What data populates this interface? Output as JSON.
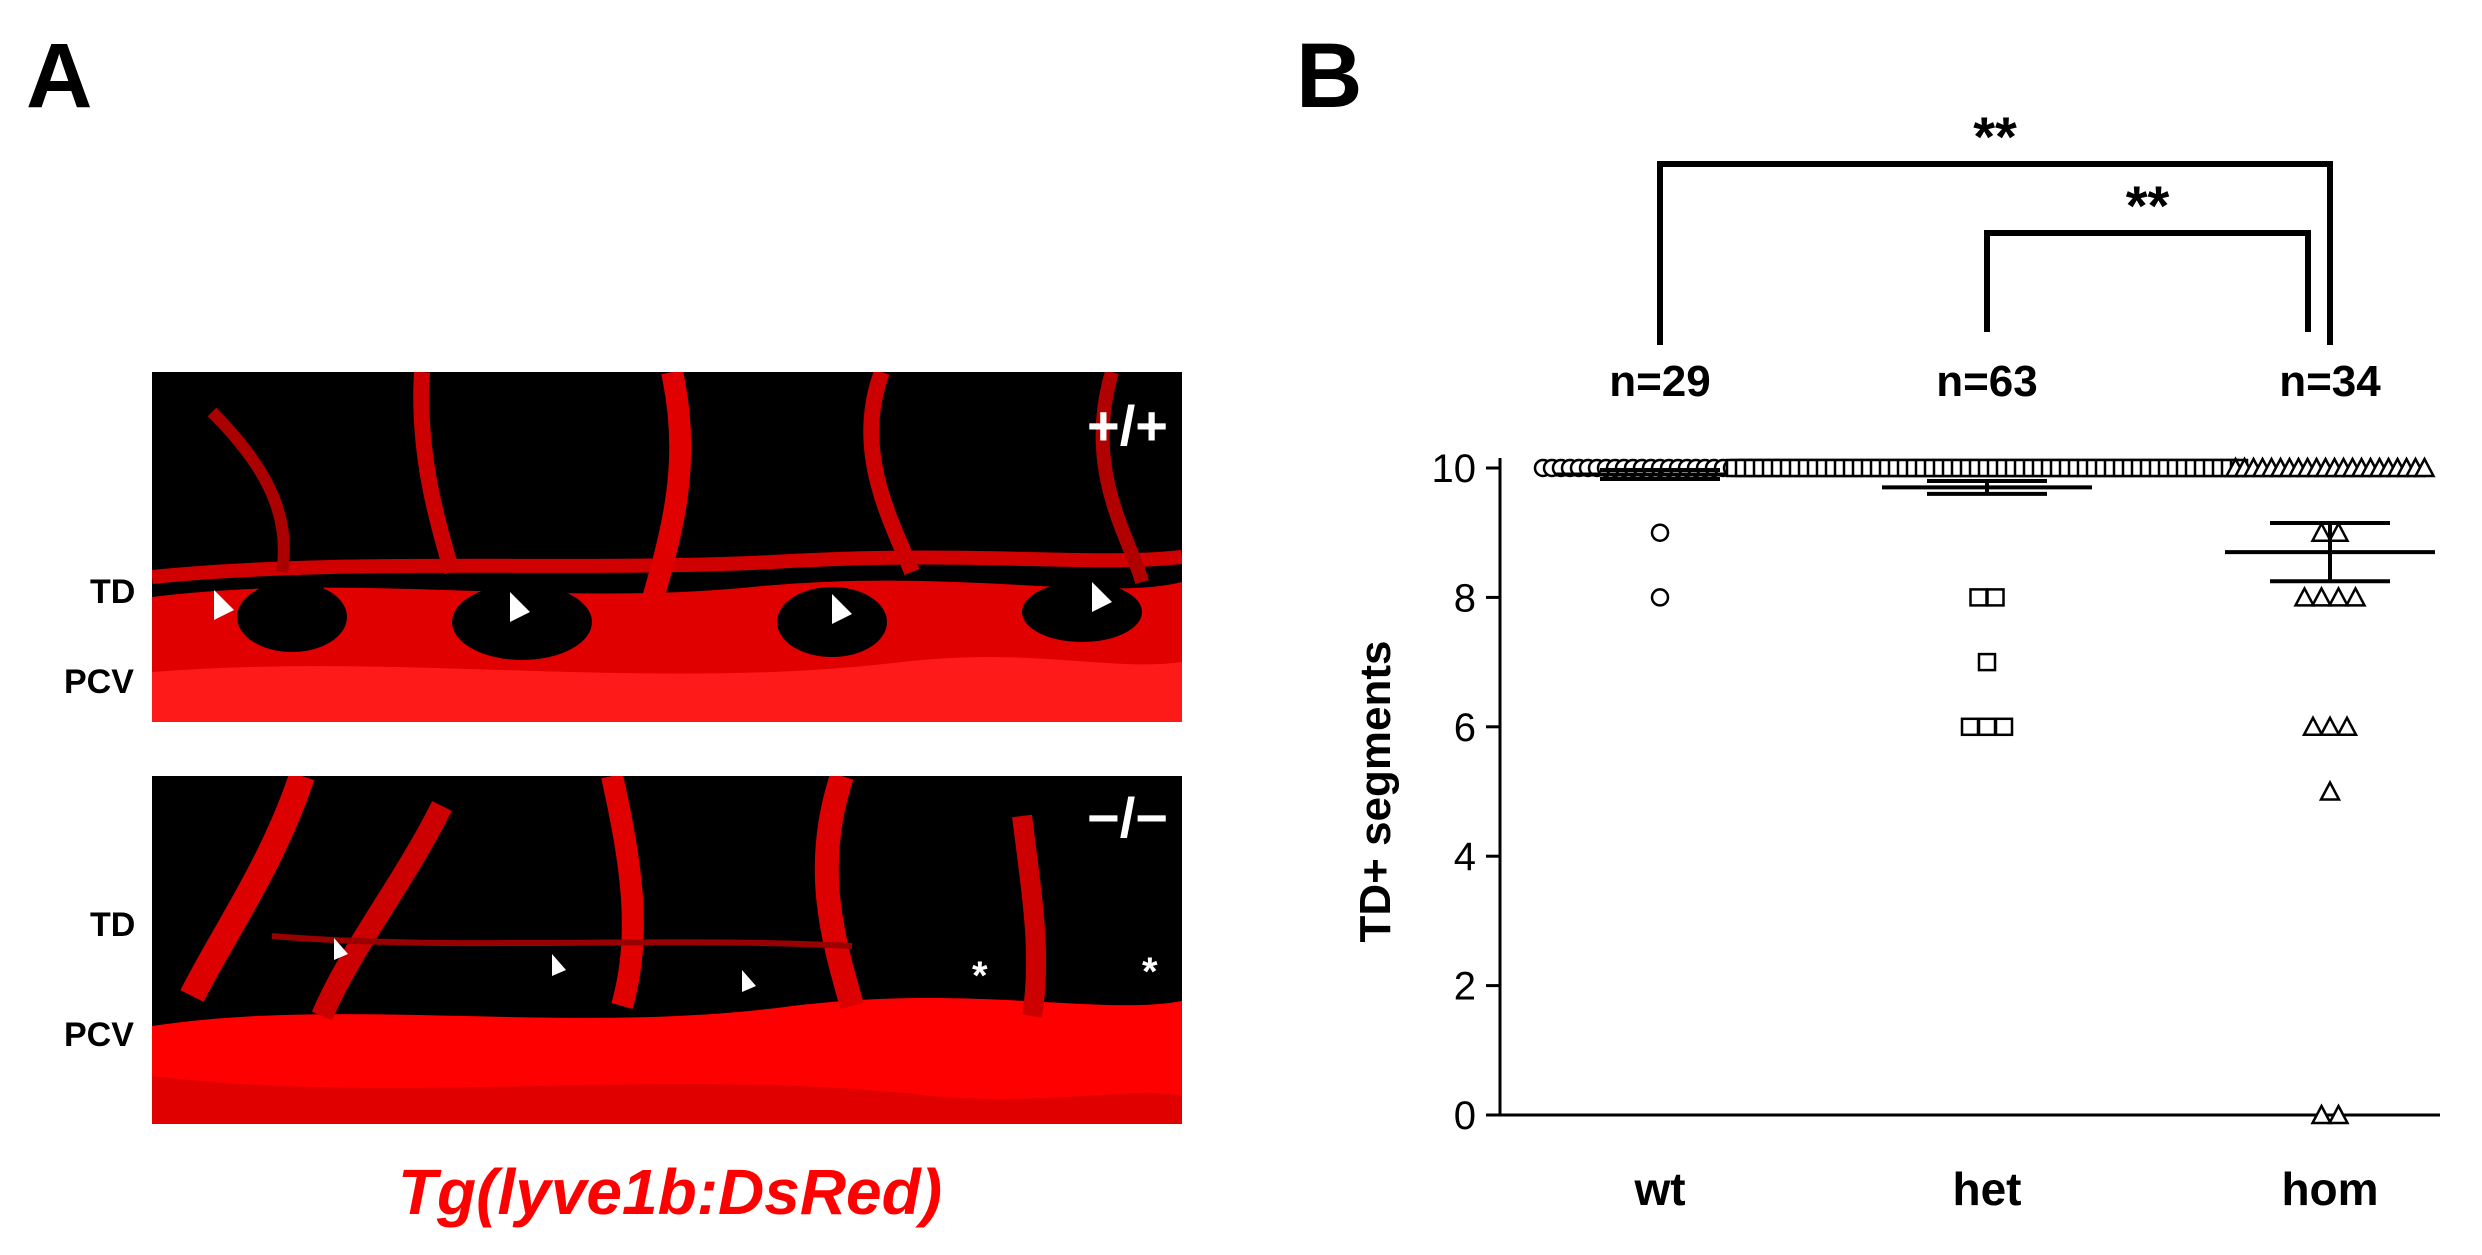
{
  "panels": {
    "a": "A",
    "b": "B"
  },
  "micrographs": {
    "top": {
      "genotype": "+/+",
      "labels": [
        "TD",
        "PCV"
      ]
    },
    "bottom": {
      "genotype": "−/−",
      "labels": [
        "TD",
        "PCV"
      ],
      "marker": "*"
    },
    "caption": "Tg(lyve1b:DsRed)",
    "colors": {
      "signal": "#ff0000",
      "background": "#000000"
    }
  },
  "chart_data": {
    "type": "scatter",
    "categories": [
      "wt",
      "het",
      "hom"
    ],
    "ylabel": "TD+ segments",
    "ylim": [
      0,
      10
    ],
    "yticks": [
      0,
      2,
      4,
      6,
      8,
      10
    ],
    "counts": [
      "n=29",
      "n=63",
      "n=34"
    ],
    "significance": [
      {
        "from": "wt",
        "to": "hom",
        "label": "**"
      },
      {
        "from": "het",
        "to": "hom",
        "label": "**"
      }
    ],
    "series": [
      {
        "category": "wt",
        "marker": "circle",
        "values": [
          10,
          10,
          10,
          10,
          10,
          10,
          10,
          10,
          10,
          10,
          10,
          10,
          10,
          10,
          10,
          10,
          10,
          10,
          10,
          10,
          10,
          10,
          10,
          10,
          10,
          10,
          10,
          9,
          8
        ],
        "mean": 9.9,
        "sem": 0.07
      },
      {
        "category": "het",
        "marker": "square",
        "values": [
          10,
          10,
          10,
          10,
          10,
          10,
          10,
          10,
          10,
          10,
          10,
          10,
          10,
          10,
          10,
          10,
          10,
          10,
          10,
          10,
          10,
          10,
          10,
          10,
          10,
          10,
          10,
          10,
          10,
          10,
          10,
          10,
          10,
          10,
          10,
          10,
          10,
          10,
          10,
          10,
          10,
          10,
          10,
          10,
          10,
          10,
          10,
          10,
          10,
          10,
          10,
          10,
          10,
          10,
          10,
          10,
          10,
          8,
          8,
          7,
          6,
          6,
          6
        ],
        "mean": 9.7,
        "sem": 0.1
      },
      {
        "category": "hom",
        "marker": "triangle",
        "values": [
          10,
          10,
          10,
          10,
          10,
          10,
          10,
          10,
          10,
          10,
          10,
          10,
          10,
          10,
          10,
          10,
          10,
          10,
          10,
          10,
          9,
          9,
          8,
          8,
          8,
          8,
          6,
          6,
          6,
          5,
          0,
          0,
          10,
          10
        ],
        "mean": 8.7,
        "sem": 0.45
      }
    ]
  }
}
